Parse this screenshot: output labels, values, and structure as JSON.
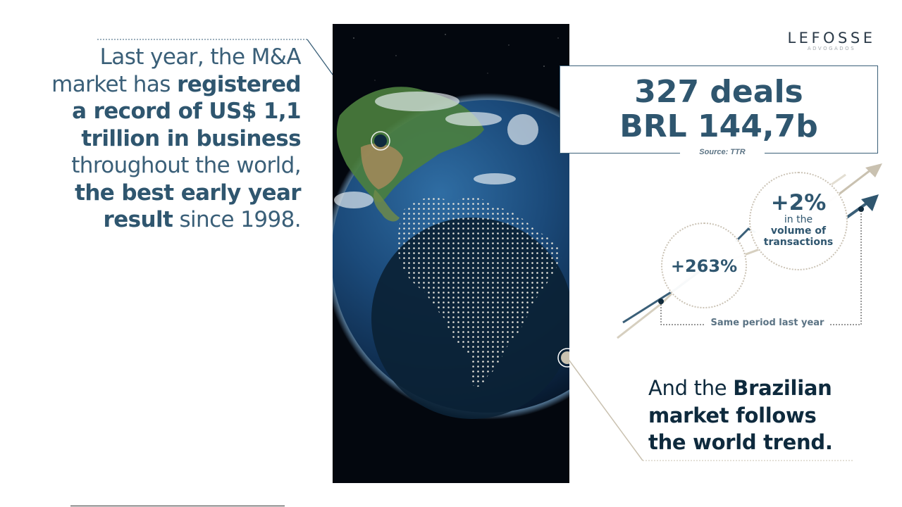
{
  "left_statement": {
    "l1": "Last year, the M&A",
    "l2a": "market has ",
    "l2b": "registered",
    "l3": "a record of US$ 1,1",
    "l4": "trillion in business",
    "l5": "throughout the world,",
    "l6": "the best early year",
    "l7a": "result",
    "l7b": " since 1998."
  },
  "logo": {
    "name": "LEFOSSE",
    "subtitle": "ADVOGADOS"
  },
  "deals": {
    "count": "327 deals",
    "value": "BRL 144,7b",
    "source": "Source: TTR"
  },
  "stats": {
    "growth_value": "+263%",
    "volume_value": "+2%",
    "volume_line1": "in the",
    "volume_line2": "volume of",
    "volume_line3": "transactions",
    "comparison_label": "Same period last year"
  },
  "right_statement": {
    "l1a": "And the ",
    "l1b": "Brazilian",
    "l2": "market follows",
    "l3": "the world trend."
  },
  "colors": {
    "primary": "#2f566f",
    "dark": "#0e2a3d",
    "accent_tan": "#c9c1b0"
  },
  "icons": [
    "earth-globe-image",
    "brazil-dotted-map",
    "trend-arrow-icon"
  ]
}
